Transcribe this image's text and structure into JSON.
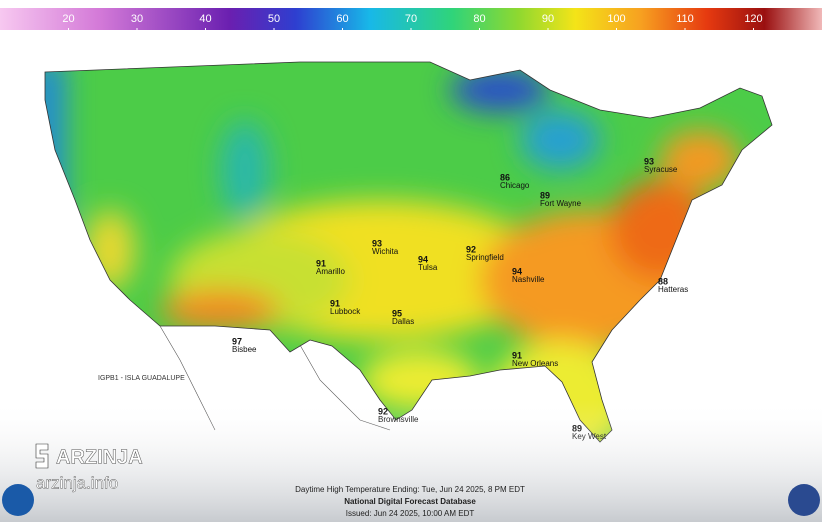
{
  "legend": {
    "lim": [
      10,
      130
    ],
    "ticks": [
      20,
      30,
      40,
      50,
      60,
      70,
      80,
      90,
      100,
      110,
      120
    ]
  },
  "map": {
    "region_label": "IGPB1 - ISLA GUADALUPE",
    "cities": [
      {
        "name": "Chicago",
        "temp": 86
      },
      {
        "name": "Nashville",
        "temp": 94
      },
      {
        "name": "Dallas",
        "temp": 95
      },
      {
        "name": "Key West",
        "temp": 89
      },
      {
        "name": "Brownsville",
        "temp": 92
      },
      {
        "name": "Lubbock",
        "temp": 91
      },
      {
        "name": "Tulsa",
        "temp": 94
      },
      {
        "name": "Wichita",
        "temp": 93
      },
      {
        "name": "Amarillo",
        "temp": 91
      },
      {
        "name": "Syracuse",
        "temp": 93
      },
      {
        "name": "Hatteras",
        "temp": 88
      },
      {
        "name": "Bisbee",
        "temp": 97
      },
      {
        "name": "New Orleans",
        "temp": 91
      },
      {
        "name": "Springfield",
        "temp": 92
      },
      {
        "name": "Fort Wayne",
        "temp": 89
      }
    ]
  },
  "footer": {
    "line1": "Daytime High Temperature Ending: Tue, Jun 24 2025, 8 PM EDT",
    "line2": "National Digital Forecast Database",
    "line3": "Issued: Jun 24 2025, 10:00 AM EDT"
  },
  "watermark": {
    "brand": "ARZINJA",
    "site": "arzinja.info"
  }
}
